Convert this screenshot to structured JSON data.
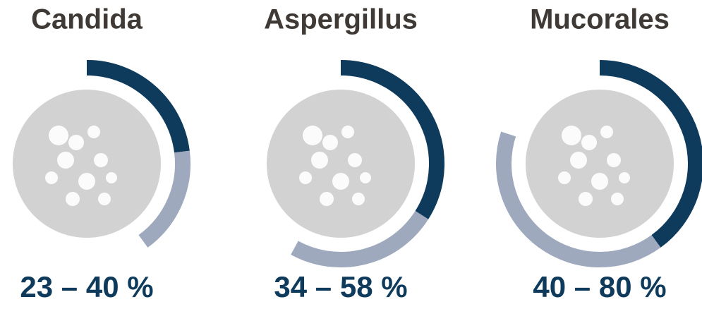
{
  "chart_data": [
    {
      "type": "ring-range",
      "title": "Candida",
      "values": [
        23,
        40
      ],
      "label": "23 – 40 %",
      "colors": [
        "#0e3a5c",
        "#9ea9be"
      ]
    },
    {
      "type": "ring-range",
      "title": "Aspergillus",
      "values": [
        34,
        58
      ],
      "label": "34 – 58 %",
      "colors": [
        "#0e3a5c",
        "#9ea9be"
      ]
    },
    {
      "type": "ring-range",
      "title": "Mucorales",
      "values": [
        40,
        80
      ],
      "label": "40 – 80 %",
      "colors": [
        "#0e3a5c",
        "#9ea9be"
      ]
    }
  ]
}
